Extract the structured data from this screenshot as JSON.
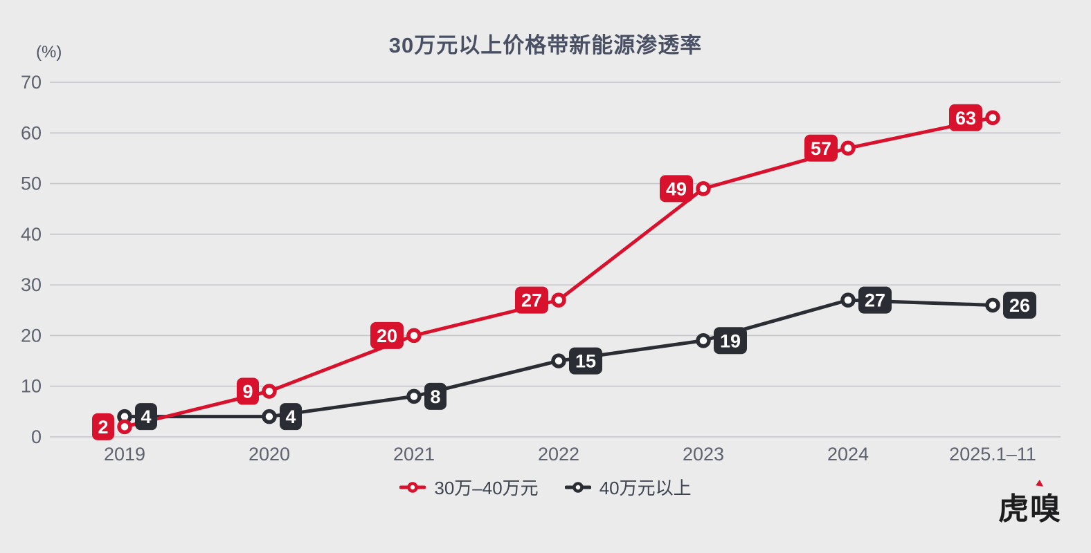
{
  "page": {
    "background": "#ebebeb"
  },
  "header": {
    "title": "30万元以上价格带新能源渗透率",
    "unit_label": "(%)"
  },
  "chart_data": {
    "type": "line",
    "title": "30万元以上价格带新能源渗透率",
    "unit": "(%)",
    "categories": [
      "2019",
      "2020",
      "2021",
      "2022",
      "2023",
      "2024",
      "2025.1–11"
    ],
    "series": [
      {
        "name": "40万元以上",
        "color": "#2b2d34",
        "values": [
          4,
          4,
          8,
          15,
          19,
          27,
          26
        ],
        "label_side": "right"
      },
      {
        "name": "30万–40万元",
        "color": "#d8112c",
        "values": [
          2,
          9,
          20,
          27,
          49,
          57,
          63
        ],
        "label_side": "left"
      }
    ],
    "ylim": [
      0,
      70
    ],
    "yticks": [
      0,
      10,
      20,
      30,
      40,
      50,
      60,
      70
    ],
    "grid": true,
    "grid_color": "#c5c5ca",
    "tick_color": "#5d626e",
    "legend_position": "bottom",
    "legend_order": [
      "30万–40万元",
      "40万元以上"
    ],
    "point_labels": true
  },
  "footer": {
    "logo_text": "虎嗅"
  }
}
